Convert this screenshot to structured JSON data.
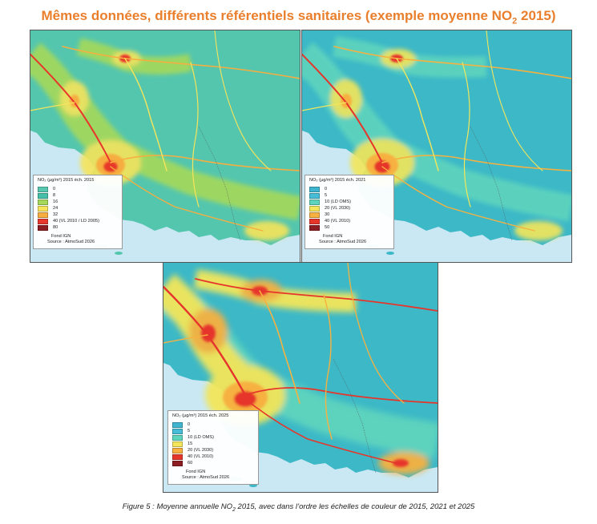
{
  "title": {
    "text": "Mêmes données, différents référentiels sanitaires (exemple moyenne NO",
    "sub": "2",
    "suffix": " 2015)"
  },
  "colors": {
    "title": "#e97f2d",
    "sea": "#c9e8f3"
  },
  "maps": [
    {
      "legend_title": "NO₂ (µg/m³) 2015 éch. 2015",
      "background": "#54c6ae",
      "items": [
        {
          "label": "0",
          "color": "#58c7b0"
        },
        {
          "label": "8",
          "color": "#45bfa7"
        },
        {
          "label": "16",
          "color": "#a6d95a"
        },
        {
          "label": "24",
          "color": "#f7e45a"
        },
        {
          "label": "32",
          "color": "#f7ad3f"
        },
        {
          "label": "40 (VL 2010 / LD 2005)",
          "color": "#e8372c"
        },
        {
          "label": "80",
          "color": "#8c1d22"
        }
      ],
      "fond": "Fond IGN",
      "source": "Source : AtmoSud 2026"
    },
    {
      "legend_title": "NO₂ (µg/m³) 2015 éch. 2021",
      "background": "#3cb8c7",
      "items": [
        {
          "label": "0",
          "color": "#3fb4cf"
        },
        {
          "label": "5",
          "color": "#47bcd6"
        },
        {
          "label": "10 (LD OMS)",
          "color": "#5fd4bd"
        },
        {
          "label": "20 (VL 2030)",
          "color": "#f3e65a"
        },
        {
          "label": "30",
          "color": "#f7b140"
        },
        {
          "label": "40 (VL 2010)",
          "color": "#e6362c"
        },
        {
          "label": "50",
          "color": "#8c1d22"
        }
      ],
      "fond": "Fond IGN",
      "source": "Source : AtmoSud 2026"
    },
    {
      "legend_title": "NO₂ (µg/m³) 2015 éch. 2025",
      "background": "#3cb8c7",
      "items": [
        {
          "label": "0",
          "color": "#3fb4cf"
        },
        {
          "label": "5",
          "color": "#47bcd6"
        },
        {
          "label": "10 (LD OMS)",
          "color": "#5fd4bd"
        },
        {
          "label": "15",
          "color": "#f3e65a"
        },
        {
          "label": "20 (VL 2030)",
          "color": "#f7b140"
        },
        {
          "label": "40 (VL 2010)",
          "color": "#e6362c"
        },
        {
          "label": "60",
          "color": "#8c1d22"
        }
      ],
      "fond": "Fond IGN",
      "source": "Source : AtmoSud 2026"
    }
  ],
  "caption": {
    "text": "Figure 5 : Moyenne annuelle NO",
    "sub": "2",
    "suffix": " 2015, avec dans l’ordre les échelles de couleur de 2015, 2021 et 2025"
  }
}
